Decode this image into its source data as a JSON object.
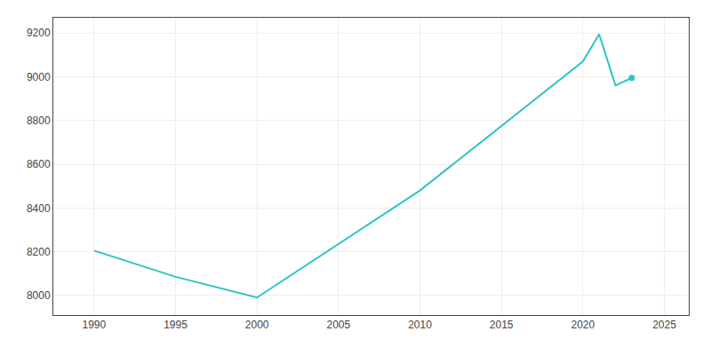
{
  "chart_data": {
    "type": "line",
    "x": [
      1990,
      1995,
      2000,
      2010,
      2020,
      2021,
      2022,
      2023
    ],
    "values": [
      8205,
      8085,
      7990,
      8480,
      9070,
      9195,
      8960,
      8995
    ],
    "color": "#2ec4c4",
    "xlim": [
      1987.5,
      2026.5
    ],
    "ylim": [
      7910,
      9270
    ],
    "xticks": [
      1990,
      1995,
      2000,
      2005,
      2010,
      2015,
      2020,
      2025
    ],
    "yticks": [
      8000,
      8200,
      8400,
      8600,
      8800,
      9000,
      9200
    ],
    "grid": true
  }
}
